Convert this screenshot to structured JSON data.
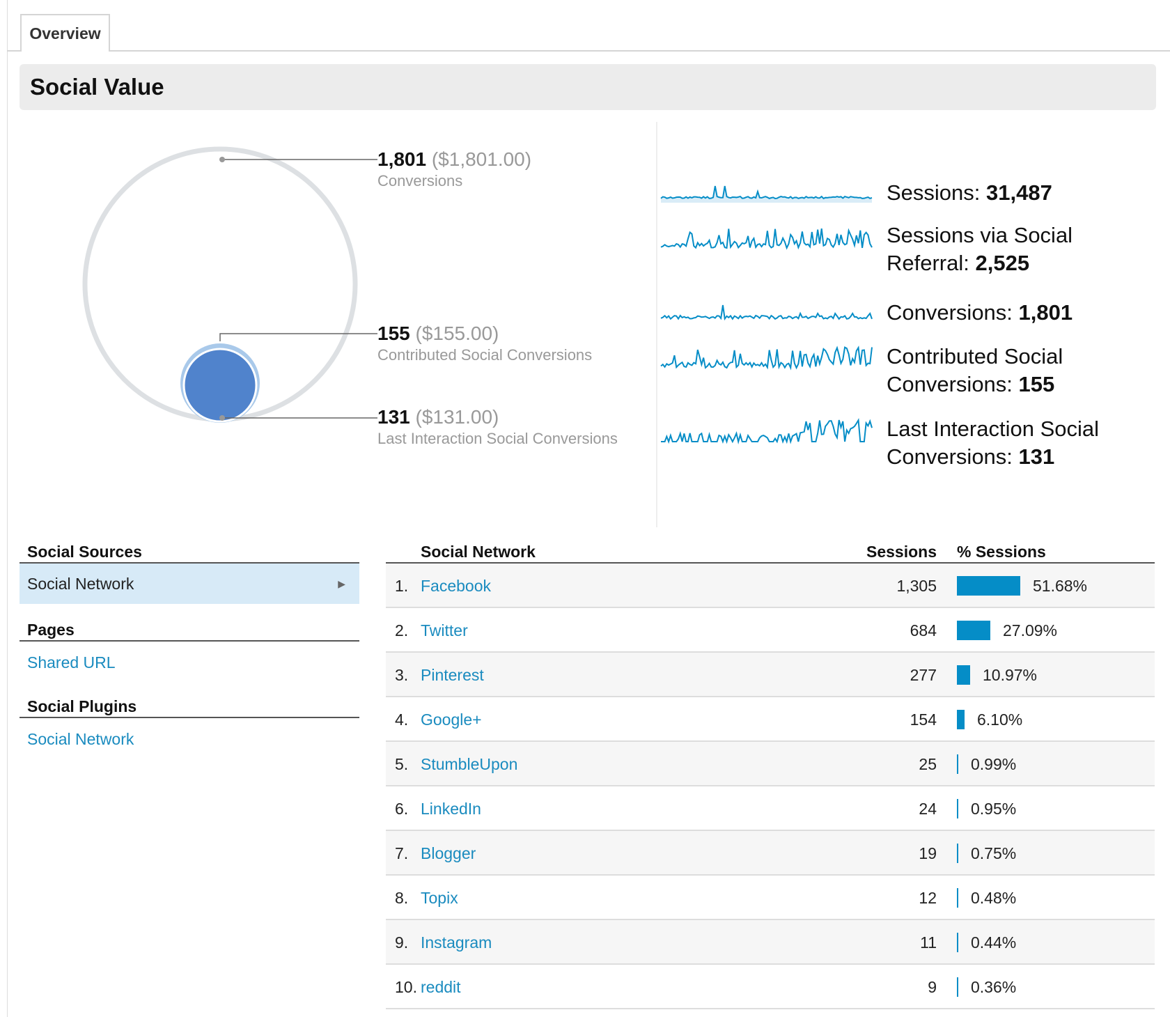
{
  "tabs": [
    {
      "label": "Overview"
    }
  ],
  "section_title": "Social Value",
  "callouts": [
    {
      "value": "1,801",
      "money": "($1,801.00)",
      "label": "Conversions"
    },
    {
      "value": "155",
      "money": "($155.00)",
      "label": "Contributed Social Conversions"
    },
    {
      "value": "131",
      "money": "($131.00)",
      "label": "Last Interaction Social Conversions"
    }
  ],
  "metrics": [
    {
      "label": "Sessions: ",
      "value": "31,487"
    },
    {
      "label": "Sessions via Social Referral: ",
      "value": "2,525"
    },
    {
      "label": "Conversions: ",
      "value": "1,801"
    },
    {
      "label": "Contributed Social Conversions: ",
      "value": "155"
    },
    {
      "label": "Last Interaction Social Conversions: ",
      "value": "131"
    }
  ],
  "nav": {
    "social_sources": "Social Sources",
    "social_network_selected": "Social Network",
    "pages": "Pages",
    "shared_url": "Shared URL",
    "social_plugins": "Social Plugins",
    "social_network_link": "Social Network"
  },
  "table": {
    "headers": {
      "network": "Social Network",
      "sessions": "Sessions",
      "pct": "% Sessions"
    },
    "rows": [
      {
        "idx": "1.",
        "name": "Facebook",
        "sessions": "1,305",
        "pct": "51.68%",
        "share": 0.5168
      },
      {
        "idx": "2.",
        "name": "Twitter",
        "sessions": "684",
        "pct": "27.09%",
        "share": 0.2709
      },
      {
        "idx": "3.",
        "name": "Pinterest",
        "sessions": "277",
        "pct": "10.97%",
        "share": 0.1097
      },
      {
        "idx": "4.",
        "name": "Google+",
        "sessions": "154",
        "pct": "6.10%",
        "share": 0.061
      },
      {
        "idx": "5.",
        "name": "StumbleUpon",
        "sessions": "25",
        "pct": "0.99%",
        "share": 0.0099
      },
      {
        "idx": "6.",
        "name": "LinkedIn",
        "sessions": "24",
        "pct": "0.95%",
        "share": 0.0095
      },
      {
        "idx": "7.",
        "name": "Blogger",
        "sessions": "19",
        "pct": "0.75%",
        "share": 0.0075
      },
      {
        "idx": "8.",
        "name": "Topix",
        "sessions": "12",
        "pct": "0.48%",
        "share": 0.0048
      },
      {
        "idx": "9.",
        "name": "Instagram",
        "sessions": "11",
        "pct": "0.44%",
        "share": 0.0044
      },
      {
        "idx": "10.",
        "name": "reddit",
        "sessions": "9",
        "pct": "0.36%",
        "share": 0.0036
      }
    ]
  },
  "colors": {
    "accent": "#058dc7",
    "link": "#1a8bbf",
    "circle_fill": "#5083cc",
    "circle_ring": "#dde0e3"
  }
}
